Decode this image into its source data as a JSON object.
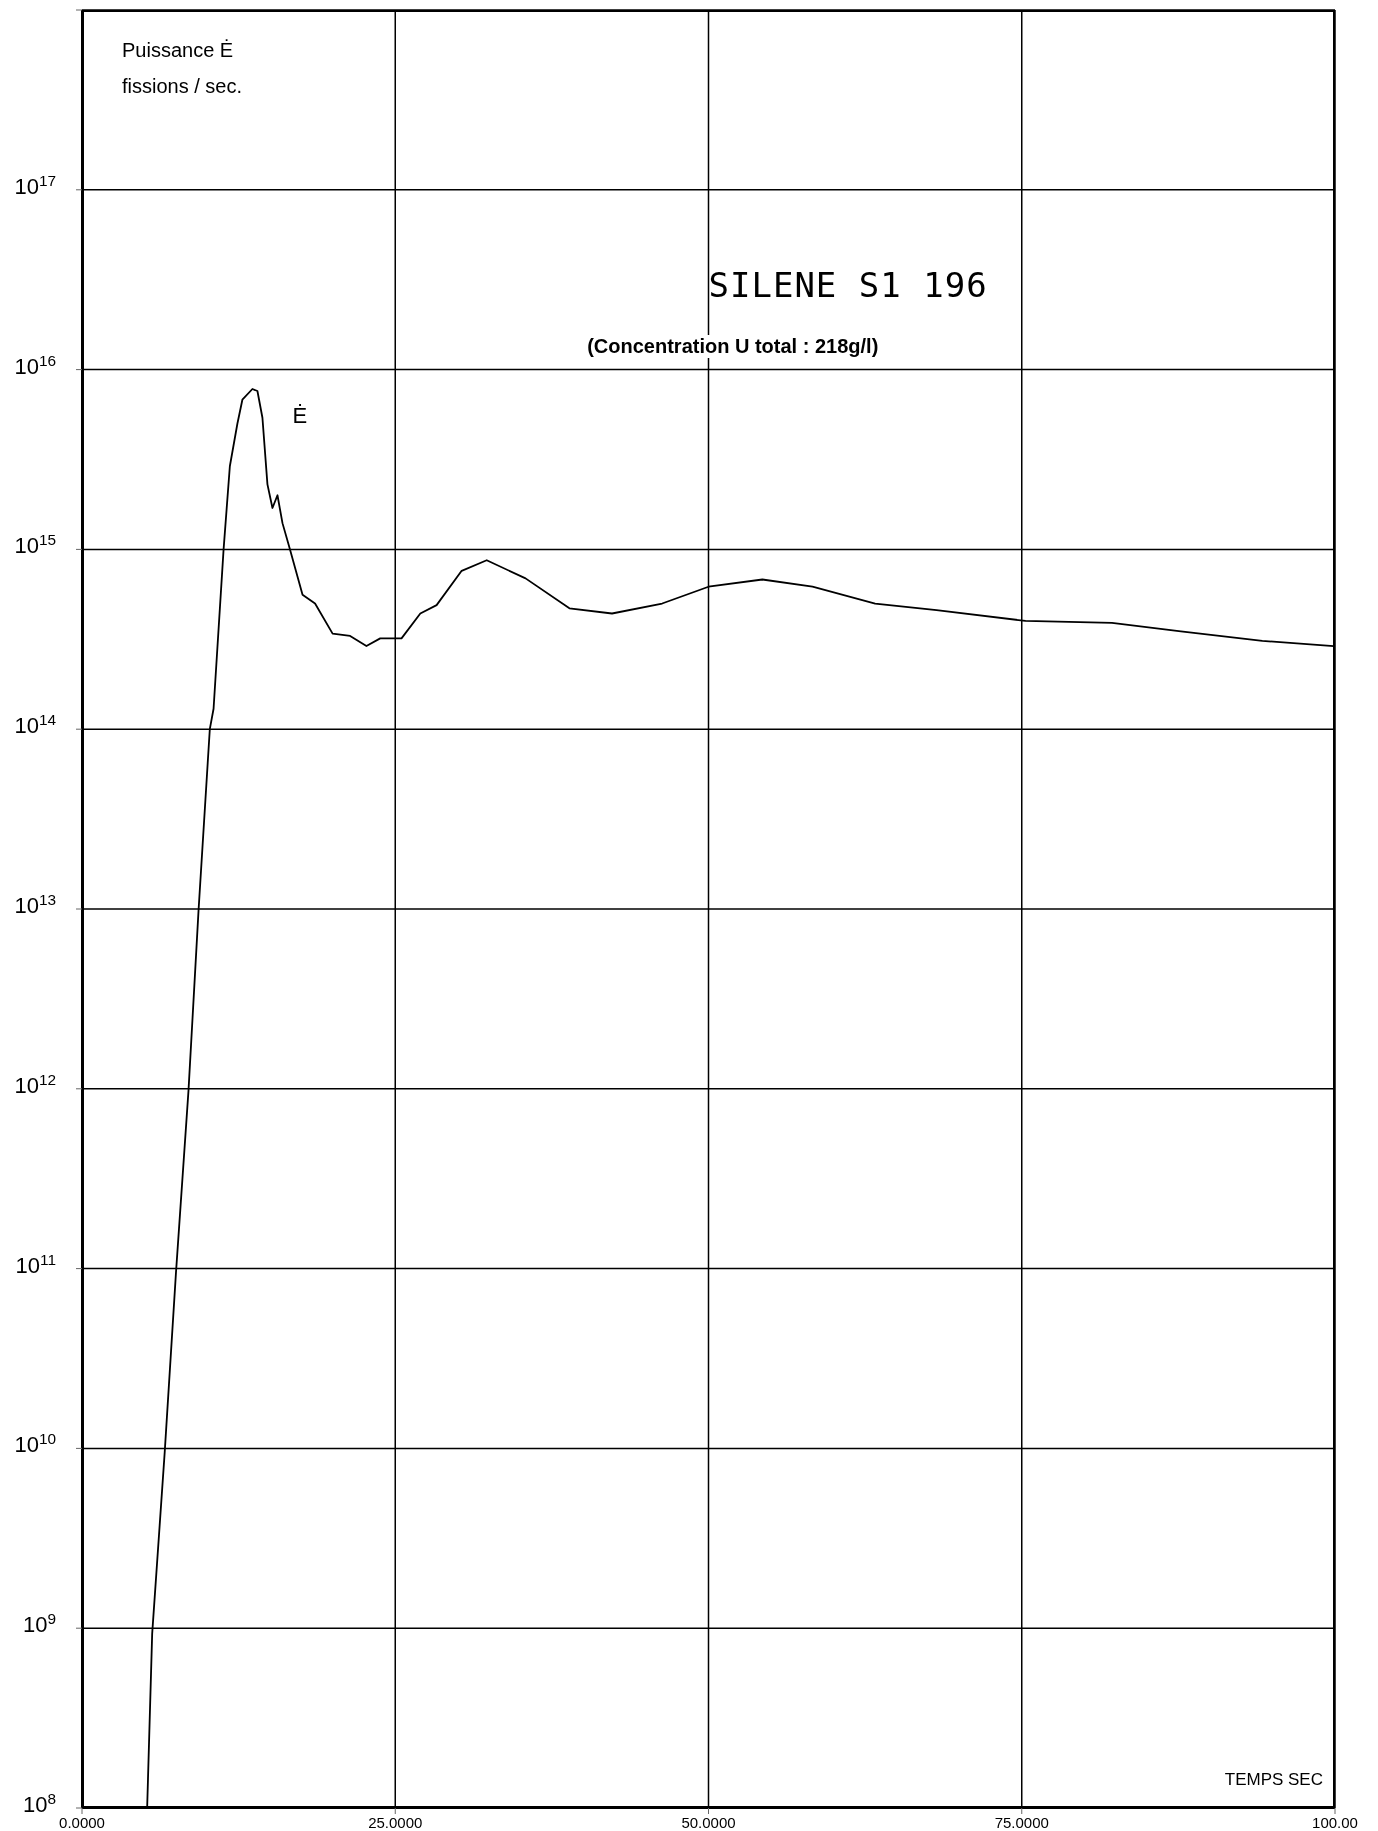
{
  "chart_data": {
    "type": "line",
    "title": "SILENE S1 196",
    "subtitle": "(Concentration U total : 218g/l)",
    "xlabel": "TEMPS SEC",
    "ylabel": "Puissance Ė\nfissions / sec.",
    "x": [
      0,
      5.2,
      5.6,
      6.6,
      7.5,
      8.5,
      9.3,
      10.2,
      10.5,
      11.3,
      11.8,
      12.4,
      12.8,
      13.6,
      14.0,
      14.4,
      14.8,
      15.2,
      15.6,
      16.0,
      16.6,
      17.6,
      18.6,
      20.0,
      21.4,
      22.7,
      23.8,
      25.5,
      27.0,
      28.3,
      30.3,
      32.3,
      35.4,
      38.9,
      42.3,
      46.3,
      50.0,
      54.3,
      58.3,
      63.3,
      68.2,
      75.3,
      82.2,
      87.7,
      94.2,
      99.9
    ],
    "series": [
      {
        "name": "Ė",
        "color": "#000000",
        "values": [
          100000000.0,
          100000000.0,
          930000000.0,
          9500000000.0,
          95000000000.0,
          980000000000.0,
          9800000000000.0,
          100000000000000.0,
          130000000000000.0,
          1000000000000000.0,
          2900000000000000.0,
          5000000000000000.0,
          6800000000000000.0,
          7800000000000000.0,
          7600000000000000.0,
          5400000000000000.0,
          2300000000000000.0,
          1700000000000000.0,
          2000000000000000.0,
          1400000000000000.0,
          1000000000000000.0,
          560000000000000.0,
          500000000000000.0,
          340000000000000.0,
          330000000000000.0,
          290000000000000.0,
          320000000000000.0,
          320000000000000.0,
          440000000000000.0,
          490000000000000.0,
          760000000000000.0,
          870000000000000.0,
          690000000000000.0,
          470000000000000.0,
          440000000000000.0,
          500000000000000.0,
          620000000000000.0,
          680000000000000.0,
          620000000000000.0,
          500000000000000.0,
          460000000000000.0,
          400000000000000.0,
          390000000000000.0,
          350000000000000.0,
          310000000000000.0,
          290000000000000.0
        ]
      }
    ],
    "xlim": [
      0,
      100
    ],
    "xticks": [
      {
        "value": 0,
        "label": "0.0000"
      },
      {
        "value": 25,
        "label": "25.0000"
      },
      {
        "value": 50,
        "label": "50.0000"
      },
      {
        "value": 75,
        "label": "75.0000"
      },
      {
        "value": 100,
        "label": "100.00"
      }
    ],
    "ylim": [
      100000000.0,
      1e+18
    ],
    "yticks": [
      {
        "value": 100000000.0,
        "label": "10$^{8}$"
      },
      {
        "value": 1000000000.0,
        "label": "10$^{9}$"
      },
      {
        "value": 10000000000.0,
        "label": "10$^{10}$"
      },
      {
        "value": 100000000000.0,
        "label": "10$^{11}$"
      },
      {
        "value": 1000000000000.0,
        "label": "10$^{12}$"
      },
      {
        "value": 10000000000000.0,
        "label": "10$^{13}$"
      },
      {
        "value": 100000000000000.0,
        "label": "10$^{14}$"
      },
      {
        "value": 1000000000000000.0,
        "label": "10$^{15}$"
      },
      {
        "value": 1e+16,
        "label": "10$^{16}$"
      },
      {
        "value": 1e+17,
        "label": "10$^{17}$"
      },
      {
        "value": 1e+18,
        "label": null
      }
    ],
    "log": "y",
    "grid": true,
    "marker": "none",
    "line_style": "solid"
  }
}
